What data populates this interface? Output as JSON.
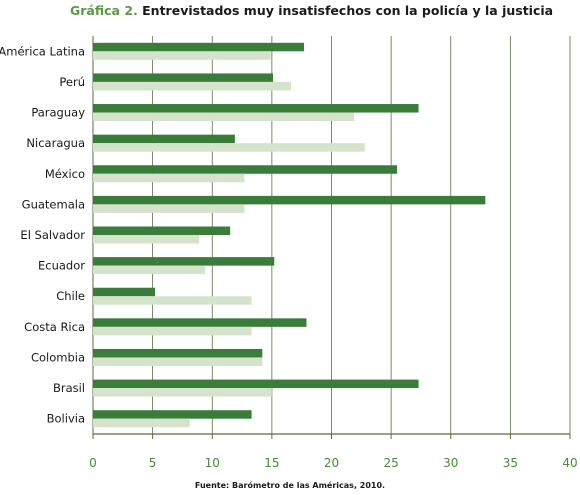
{
  "title": {
    "prefix": "Gráfica 2.",
    "text": "Entrevistados muy insatisfechos con la policía y la justicia"
  },
  "source": "Fuente: Barómetro de las Américas, 2010.",
  "colors": {
    "policia": "#3a7d3a",
    "justicia": "#d5e3cc",
    "grid": "#5a6e3a",
    "ticks": "#4a8a3a"
  },
  "chart_data": {
    "type": "bar",
    "orientation": "horizontal",
    "categories": [
      "América Latina",
      "Perú",
      "Paraguay",
      "Nicaragua",
      "México",
      "Guatemala",
      "El Salvador",
      "Ecuador",
      "Chile",
      "Costa Rica",
      "Colombia",
      "Brasil",
      "Bolivia"
    ],
    "series": [
      {
        "values": [
          17.7,
          15.1,
          27.3,
          11.9,
          25.5,
          32.9,
          11.5,
          15.2,
          5.2,
          17.9,
          14.2,
          27.3,
          13.3
        ]
      },
      {
        "values": [
          14.9,
          16.6,
          21.9,
          22.8,
          12.7,
          12.7,
          8.9,
          9.4,
          13.3,
          13.3,
          14.2,
          15.0,
          8.1
        ]
      }
    ],
    "xlim": [
      0,
      40
    ],
    "xticks": [
      "0",
      "5",
      "10",
      "15",
      "20",
      "25",
      "30",
      "35",
      "40"
    ],
    "grid": "vertical"
  }
}
